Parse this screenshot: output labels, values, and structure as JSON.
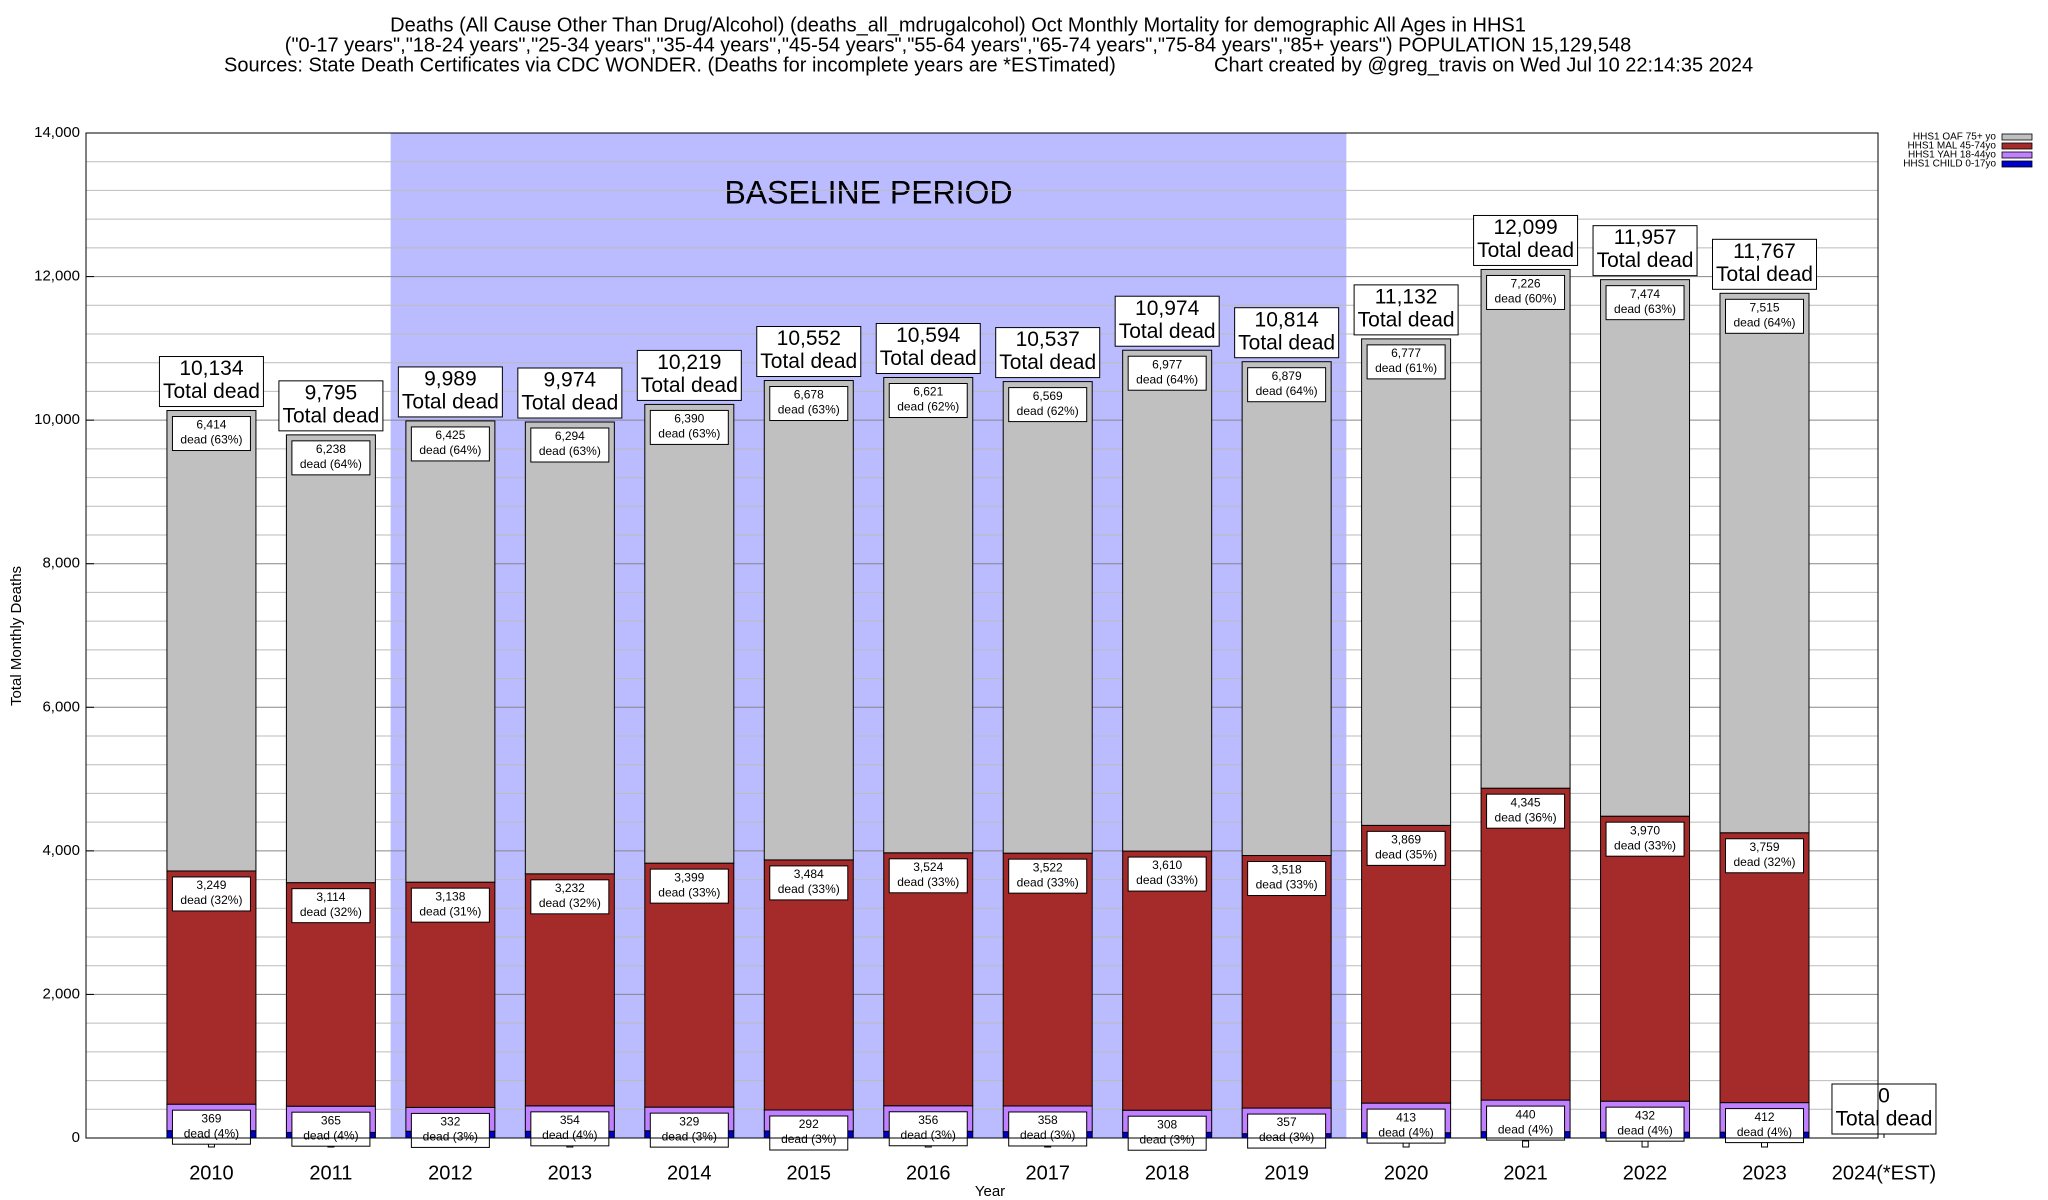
{
  "chart_data": {
    "type": "stacked-bar",
    "title": "Deaths (All Cause Other Than Drug/Alcohol) (deaths_all_mdrugalcohol) Oct Monthly Mortality for demographic All Ages in HHS1",
    "subtitle": "(\"0-17 years\",\"18-24 years\",\"25-34 years\",\"35-44 years\",\"45-54 years\",\"55-64 years\",\"65-74 years\",\"75-84 years\",\"85+ years\") POPULATION 15,129,548",
    "source": "Sources: State Death Certificates via CDC WONDER. (Deaths for incomplete years are *ESTimated)",
    "credit": "Chart created by @greg_travis on Wed Jul 10 22:14:35 2024",
    "x_label": "Year",
    "y_label": "Total Monthly Deaths",
    "categories": [
      "2010",
      "2011",
      "2012",
      "2013",
      "2014",
      "2015",
      "2016",
      "2017",
      "2018",
      "2019",
      "2020",
      "2021",
      "2022",
      "2023",
      "2024(*EST)"
    ],
    "series": [
      {
        "name": "HHS1 CHILD 0-17yo",
        "color": "#0000cc",
        "values": [
          102,
          78,
          94,
          94,
          101,
          98,
          93,
          88,
          79,
          60,
          73,
          88,
          81,
          81,
          0
        ]
      },
      {
        "name": "HHS1 YAH 18-44yo",
        "color": "#c080ff",
        "values": [
          369,
          365,
          332,
          354,
          329,
          292,
          356,
          358,
          308,
          357,
          413,
          440,
          432,
          412,
          0
        ],
        "value_labels": [
          "369",
          "365",
          "332",
          "354",
          "329",
          "292",
          "356",
          "358",
          "308",
          "357",
          "413",
          "440",
          "432",
          "412",
          null
        ],
        "share_labels": [
          "dead (4%)",
          "dead (4%)",
          "dead (3%)",
          "dead (4%)",
          "dead (3%)",
          "dead (3%)",
          "dead (3%)",
          "dead (3%)",
          "dead (3%)",
          "dead (3%)",
          "dead (4%)",
          "dead (4%)",
          "dead (4%)",
          "dead (4%)",
          null
        ]
      },
      {
        "name": "HHS1 MAL 45-74yo",
        "color": "#a52a2a",
        "values": [
          3249,
          3114,
          3138,
          3232,
          3399,
          3484,
          3524,
          3522,
          3610,
          3518,
          3869,
          4345,
          3970,
          3759,
          0
        ],
        "value_labels": [
          "3,249",
          "3,114",
          "3,138",
          "3,232",
          "3,399",
          "3,484",
          "3,524",
          "3,522",
          "3,610",
          "3,518",
          "3,869",
          "4,345",
          "3,970",
          "3,759",
          null
        ],
        "share_labels": [
          "dead (32%)",
          "dead (32%)",
          "dead (31%)",
          "dead (32%)",
          "dead (33%)",
          "dead (33%)",
          "dead (33%)",
          "dead (33%)",
          "dead (33%)",
          "dead (33%)",
          "dead (35%)",
          "dead (36%)",
          "dead (33%)",
          "dead (32%)",
          null
        ]
      },
      {
        "name": "HHS1 OAF 75+ yo",
        "color": "#c0c0c0",
        "values": [
          6414,
          6238,
          6425,
          6294,
          6390,
          6678,
          6621,
          6569,
          6977,
          6879,
          6777,
          7226,
          7474,
          7515,
          0
        ],
        "value_labels": [
          "6,414",
          "6,238",
          "6,425",
          "6,294",
          "6,390",
          "6,678",
          "6,621",
          "6,569",
          "6,977",
          "6,879",
          "6,777",
          "7,226",
          "7,474",
          "7,515",
          null
        ],
        "share_labels": [
          "dead (63%)",
          "dead (64%)",
          "dead (64%)",
          "dead (63%)",
          "dead (63%)",
          "dead (63%)",
          "dead (62%)",
          "dead (62%)",
          "dead (64%)",
          "dead (64%)",
          "dead (61%)",
          "dead (60%)",
          "dead (63%)",
          "dead (64%)",
          null
        ]
      }
    ],
    "totals": [
      10134,
      9795,
      9989,
      9974,
      10219,
      10552,
      10594,
      10537,
      10974,
      10814,
      11132,
      12099,
      11957,
      11767,
      0
    ],
    "total_labels": [
      "10,134",
      "9,795",
      "9,989",
      "9,974",
      "10,219",
      "10,552",
      "10,594",
      "10,537",
      "10,974",
      "10,814",
      "11,132",
      "12,099",
      "11,957",
      "11,767",
      "0"
    ],
    "total_caption": "Total dead",
    "annotation": {
      "text": "BASELINE PERIOD",
      "from": "2012",
      "to": "2019",
      "color": "#bbbbff"
    },
    "ylim": [
      0,
      14000
    ],
    "yticks": [
      0,
      {
        "value": 2000,
        "label": "2,000"
      },
      {
        "value": 4000,
        "label": "4,000"
      },
      {
        "value": 6000,
        "label": "6,000"
      },
      {
        "value": 8000,
        "label": "8,000"
      },
      {
        "value": 10000,
        "label": "10,000"
      },
      {
        "value": 12000,
        "label": "12,000"
      },
      {
        "value": 14000,
        "label": "14,000"
      }
    ],
    "minor_yticks": [
      400,
      800,
      1200,
      1600,
      2400,
      2800,
      3200,
      3600,
      4400,
      4800,
      5200,
      5600,
      6400,
      6800,
      7200,
      7600,
      8400,
      8800,
      9200,
      9600,
      10400,
      10800,
      11200,
      11600,
      12400,
      12800,
      13200,
      13600
    ],
    "grid": true,
    "legend": "right"
  }
}
